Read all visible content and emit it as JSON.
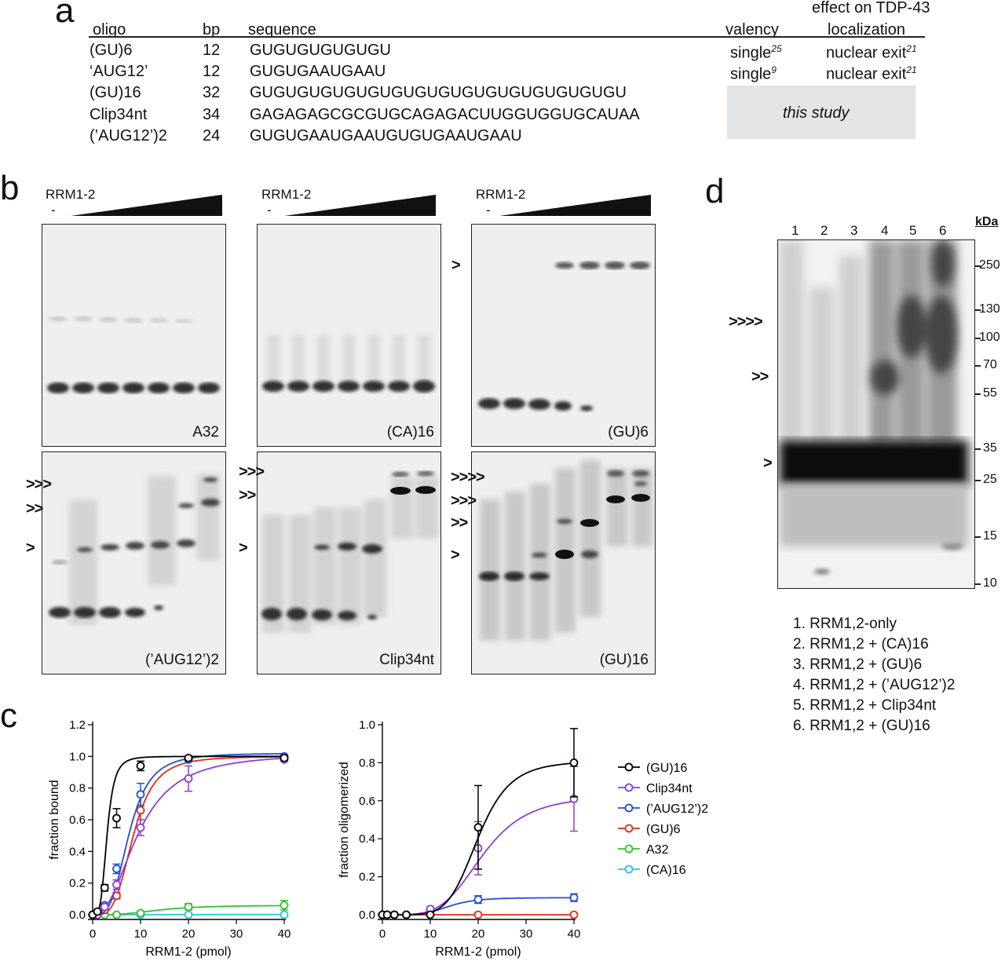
{
  "panel_letters": {
    "a": "a",
    "b": "b",
    "c": "c",
    "d": "d"
  },
  "table": {
    "headers": {
      "oligo": "oligo",
      "bp": "bp",
      "sequence": "sequence",
      "valency": "valency",
      "effect_line1": "effect on TDP-43",
      "effect_line2": "localization"
    },
    "rows": [
      {
        "oligo": "(GU)6",
        "bp": "12",
        "sequence": "GUGUGUGUGUGU",
        "valency": "single",
        "valency_ref": "25",
        "effect": "nuclear exit",
        "effect_ref": "21"
      },
      {
        "oligo": "‘AUG12’",
        "bp": "12",
        "sequence": "GUGUGAAUGAAU",
        "valency": "single",
        "valency_ref": "9",
        "effect": "nuclear exit",
        "effect_ref": "21"
      },
      {
        "oligo": "(GU)16",
        "bp": "32",
        "sequence": "GUGUGUGUGUGUGUGUGUGUGUGUGUGUGUGU"
      },
      {
        "oligo": "Clip34nt",
        "bp": "34",
        "sequence": "GAGAGAGCGCGUGCAGAGACUUGGUGGUGCAUAA"
      },
      {
        "oligo": "(’AUG12’)2",
        "bp": "24",
        "sequence": "GUGUGAAUGAAUGUGUGAAUGAAU"
      }
    ],
    "this_study": "this study"
  },
  "gels_b": {
    "rrm_label": "RRM1-2",
    "minus": "-",
    "labels": [
      "A32",
      "(CA)16",
      "(GU)6",
      "(’AUG12’)2",
      "Clip34nt",
      "(GU)16"
    ],
    "arrows": {
      "gu6": [
        ">"
      ],
      "aug": [
        ">>>",
        ">>",
        ">"
      ],
      "clip": [
        ">>>",
        ">>",
        ">"
      ],
      "gu16": [
        ">>>>",
        ">>>",
        ">>",
        ">"
      ]
    }
  },
  "gel_d": {
    "lanes": [
      "1",
      "2",
      "3",
      "4",
      "5",
      "6"
    ],
    "kda_label": "kDa",
    "markers": [
      "250",
      "130",
      "100",
      "70",
      "55",
      "35",
      "25",
      "15",
      "10"
    ],
    "arrows": [
      ">>>>",
      ">>",
      ">"
    ],
    "legend": [
      "1. RRM1,2-only",
      "2. RRM1,2 + (CA)16",
      "3. RRM1,2 + (GU)6",
      "4. RRM1,2 + (’AUG12’)2",
      "5. RRM1,2 + Clip34nt",
      "6. RRM1,2 + (GU)16"
    ]
  },
  "chart_data": [
    {
      "type": "line",
      "xlabel": "RRM1-2 (pmol)",
      "ylabel": "fraction bound",
      "xlim": [
        0,
        40
      ],
      "ylim": [
        0,
        1.2
      ],
      "xticks": [
        0,
        10,
        20,
        30,
        40
      ],
      "yticks": [
        0.0,
        0.2,
        0.4,
        0.6,
        0.8,
        1.0,
        1.2
      ],
      "series": [
        {
          "name": "(GU)16",
          "color": "#000000",
          "x": [
            0,
            1,
            2.5,
            5,
            10,
            20,
            40
          ],
          "y": [
            0.0,
            0.02,
            0.17,
            0.61,
            0.94,
            0.99,
            0.99
          ],
          "err": [
            0,
            0.01,
            0.02,
            0.06,
            0.03,
            0.01,
            0.01
          ]
        },
        {
          "name": "Clip34nt",
          "color": "#8a3fd8",
          "x": [
            0,
            1,
            2.5,
            5,
            10,
            20,
            40
          ],
          "y": [
            0.0,
            0.0,
            0.05,
            0.19,
            0.55,
            0.86,
            0.98
          ],
          "err": [
            0,
            0,
            0.01,
            0.03,
            0.05,
            0.08,
            0.01
          ]
        },
        {
          "name": "(’AUG12’)2",
          "color": "#1f4fd6",
          "x": [
            0,
            1,
            2.5,
            5,
            10,
            20,
            40
          ],
          "y": [
            0.0,
            0.01,
            0.06,
            0.29,
            0.76,
            0.98,
            1.0
          ],
          "err": [
            0,
            0,
            0.01,
            0.03,
            0.07,
            0.01,
            0.01
          ]
        },
        {
          "name": "(GU)6",
          "color": "#e02a1b",
          "x": [
            0,
            1,
            2.5,
            5,
            10,
            20,
            40
          ],
          "y": [
            0.0,
            0.0,
            0.03,
            0.12,
            0.66,
            0.98,
            0.99
          ],
          "err": [
            0,
            0,
            0.01,
            0.02,
            0.1,
            0.01,
            0.01
          ]
        },
        {
          "name": "A32",
          "color": "#2ec42e",
          "x": [
            0,
            1,
            2.5,
            5,
            10,
            20,
            40
          ],
          "y": [
            0.0,
            0.0,
            0.0,
            0.0,
            0.01,
            0.05,
            0.06
          ],
          "err": [
            0,
            0,
            0,
            0,
            0.01,
            0.02,
            0.03
          ]
        },
        {
          "name": "(CA)16",
          "color": "#27c8d8",
          "x": [
            0,
            1,
            2.5,
            5,
            10,
            20,
            40
          ],
          "y": [
            0.0,
            0.0,
            0.0,
            0.0,
            0.0,
            0.0,
            0.0
          ],
          "err": [
            0,
            0,
            0,
            0,
            0,
            0,
            0
          ]
        }
      ]
    },
    {
      "type": "line",
      "xlabel": "RRM1-2 (pmol)",
      "ylabel": "fraction oligomerized",
      "xlim": [
        0,
        40
      ],
      "ylim": [
        0,
        1.0
      ],
      "xticks": [
        0,
        10,
        20,
        30,
        40
      ],
      "yticks": [
        0.0,
        0.2,
        0.4,
        0.6,
        0.8,
        1.0
      ],
      "series": [
        {
          "name": "(GU)16",
          "color": "#000000",
          "x": [
            0,
            1,
            2.5,
            5,
            10,
            20,
            40
          ],
          "y": [
            0.0,
            0.0,
            0.0,
            0.0,
            0.0,
            0.46,
            0.8
          ],
          "err": [
            0,
            0,
            0,
            0,
            0,
            0.22,
            0.18
          ]
        },
        {
          "name": "Clip34nt",
          "color": "#8a3fd8",
          "x": [
            0,
            1,
            2.5,
            5,
            10,
            20,
            40
          ],
          "y": [
            0.0,
            0.0,
            0.0,
            0.0,
            0.03,
            0.35,
            0.61
          ],
          "err": [
            0,
            0,
            0,
            0,
            0.01,
            0.14,
            0.17
          ]
        },
        {
          "name": "(’AUG12’)2",
          "color": "#1f4fd6",
          "x": [
            0,
            1,
            2.5,
            5,
            10,
            20,
            40
          ],
          "y": [
            0.0,
            0.0,
            0.0,
            0.0,
            0.02,
            0.08,
            0.09
          ],
          "err": [
            0,
            0,
            0,
            0,
            0.01,
            0.02,
            0.02
          ]
        },
        {
          "name": "(GU)6",
          "color": "#e02a1b",
          "x": [
            0,
            1,
            2.5,
            5,
            10,
            20,
            40
          ],
          "y": [
            0.0,
            0.0,
            0.0,
            0.0,
            0.0,
            0.0,
            0.0
          ],
          "err": [
            0,
            0,
            0,
            0,
            0,
            0,
            0
          ]
        }
      ]
    }
  ],
  "legend_c": [
    "(GU)16",
    "Clip34nt",
    "(’AUG12’)2",
    "(GU)6",
    "A32",
    "(CA)16"
  ],
  "legend_c_colors": [
    "#000000",
    "#8a3fd8",
    "#1f4fd6",
    "#e02a1b",
    "#2ec42e",
    "#27c8d8"
  ]
}
